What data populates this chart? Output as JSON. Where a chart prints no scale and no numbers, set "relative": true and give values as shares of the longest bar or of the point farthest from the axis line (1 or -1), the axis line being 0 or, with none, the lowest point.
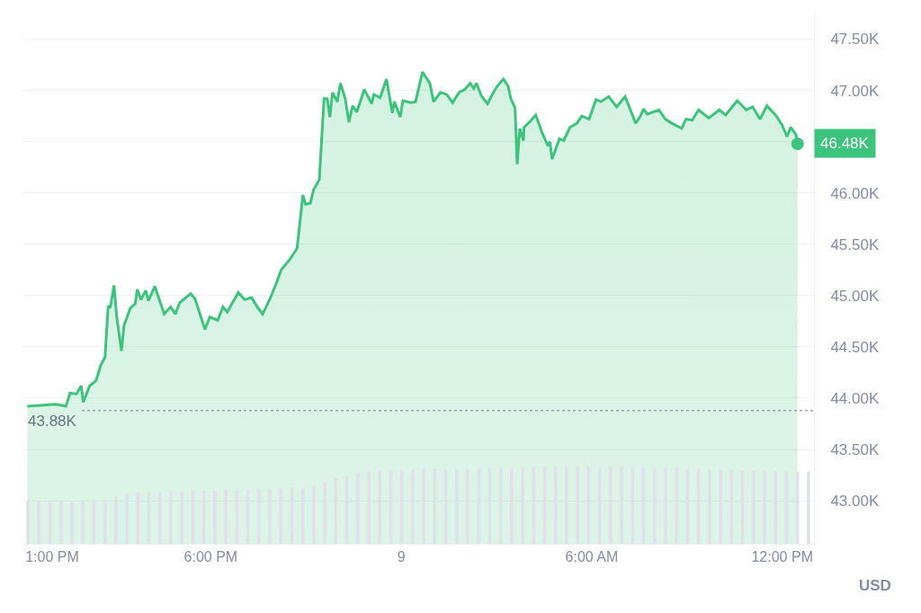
{
  "chart_data": [
    {
      "type": "area",
      "ylabel": "USD",
      "x": [
        "--02-08T12:13",
        "--02-08T13:07",
        "--02-08T13:26",
        "--02-08T13:34",
        "--02-08T13:46",
        "--02-08T13:55",
        "--02-08T13:59",
        "--02-08T14:11",
        "--02-08T14:23",
        "--02-08T14:32",
        "--02-08T14:40",
        "--02-08T14:46",
        "--02-08T14:50",
        "--02-08T14:57",
        "--02-08T15:02",
        "--02-08T15:11",
        "--02-08T15:16",
        "--02-08T15:28",
        "--02-08T15:37",
        "--02-08T15:41",
        "--02-08T15:48",
        "--02-08T15:57",
        "--02-08T16:02",
        "--02-08T16:14",
        "--02-08T16:22",
        "--02-08T16:32",
        "--02-08T16:44",
        "--02-08T16:53",
        "--02-08T17:01",
        "--02-08T17:22",
        "--02-08T17:30",
        "--02-08T17:49",
        "--02-08T17:58",
        "--02-08T18:13",
        "--02-08T18:23",
        "--02-08T18:31",
        "--02-08T18:52",
        "--02-08T19:04",
        "--02-08T19:17",
        "--02-08T19:29",
        "--02-08T19:38",
        "--02-08T19:52",
        "--02-08T20:03",
        "--02-08T20:13",
        "--02-08T20:29",
        "--02-08T20:43",
        "--02-08T20:54",
        "--02-08T20:59",
        "--02-08T21:08",
        "--02-08T21:14",
        "--02-08T21:25",
        "--02-08T21:34",
        "--02-08T21:40",
        "--02-08T21:45",
        "--02-08T21:50",
        "--02-08T21:59",
        "--02-08T22:05",
        "--02-08T22:14",
        "--02-08T22:21",
        "--02-08T22:28",
        "--02-08T22:36",
        "--02-08T22:50",
        "--02-08T23:04",
        "--02-08T23:08",
        "--02-08T23:20",
        "--02-08T23:32",
        "--02-08T23:43",
        "--02-08T23:47",
        "--02-08T23:58",
        "--02-09T00:03",
        "--02-09T00:18",
        "--02-09T00:27",
        "--02-09T00:40",
        "--02-09T00:54",
        "--02-09T01:01",
        "--02-09T01:14",
        "--02-09T01:26",
        "--02-09T01:37",
        "--02-09T01:49",
        "--02-09T02:00",
        "--02-09T02:10",
        "--02-09T02:17",
        "--02-09T02:22",
        "--02-09T02:31",
        "--02-09T02:43",
        "--02-09T02:51",
        "--02-09T03:01",
        "--02-09T03:13",
        "--02-09T03:22",
        "--02-09T03:27",
        "--02-09T03:35",
        "--02-09T03:39",
        "--02-09T03:44",
        "--02-09T03:51",
        "--02-09T03:52",
        "--02-09T04:04",
        "--02-09T04:14",
        "--02-09T04:26",
        "--02-09T04:37",
        "--02-09T04:41",
        "--02-09T04:45",
        "--02-09T04:59",
        "--02-09T05:07",
        "--02-09T05:19",
        "--02-09T05:32",
        "--02-09T05:41",
        "--02-09T05:55",
        "--02-09T06:08",
        "--02-09T06:17",
        "--02-09T06:32",
        "--02-09T06:47",
        "--02-09T07:03",
        "--02-09T07:23",
        "--02-09T07:32",
        "--02-09T07:38",
        "--02-09T07:45",
        "--02-09T08:07",
        "--02-09T08:19",
        "--02-09T08:31",
        "--02-09T08:50",
        "--02-09T08:58",
        "--02-09T09:10",
        "--02-09T09:22",
        "--02-09T09:41",
        "--02-09T10:01",
        "--02-09T10:13",
        "--02-09T10:35",
        "--02-09T10:52",
        "--02-09T11:04",
        "--02-09T11:18",
        "--02-09T11:31",
        "--02-09T11:49",
        "--02-09T12:00",
        "--02-09T12:09",
        "--02-09T12:16",
        "--02-09T12:26",
        "--02-09T12:29"
      ],
      "series": [
        {
          "color": "#3cc47c",
          "values": [
            43920,
            43940,
            43920,
            44050,
            44040,
            44120,
            43960,
            44120,
            44170,
            44320,
            44400,
            44900,
            44880,
            45100,
            44800,
            44460,
            44710,
            44880,
            44920,
            45060,
            44960,
            45050,
            44950,
            45090,
            44970,
            44820,
            44890,
            44820,
            44930,
            45020,
            44970,
            44670,
            44790,
            44760,
            44890,
            44840,
            45030,
            44960,
            44980,
            44880,
            44820,
            44970,
            45110,
            45250,
            45350,
            45460,
            45980,
            45890,
            45900,
            46030,
            46130,
            46920,
            46920,
            46740,
            46980,
            46890,
            47070,
            46920,
            46690,
            46850,
            46790,
            47010,
            46870,
            46960,
            46930,
            47110,
            46780,
            46890,
            46740,
            46900,
            46880,
            46890,
            47180,
            47070,
            46890,
            46980,
            46960,
            46880,
            46980,
            47010,
            47070,
            47020,
            47070,
            46950,
            46870,
            46950,
            47040,
            47110,
            47040,
            46920,
            46830,
            46280,
            46630,
            46510,
            46640,
            46700,
            46760,
            46590,
            46460,
            46500,
            46330,
            46530,
            46510,
            46640,
            46680,
            46750,
            46720,
            46910,
            46890,
            46940,
            46840,
            46940,
            46680,
            46750,
            46820,
            46770,
            46810,
            46720,
            46680,
            46630,
            46720,
            46710,
            46810,
            46730,
            46810,
            46760,
            46900,
            46810,
            46840,
            46720,
            46850,
            46750,
            46660,
            46550,
            46640,
            46570,
            46480
          ]
        }
      ],
      "xlim": [
        "--02-08T12:04",
        "--02-09T13:00"
      ],
      "xticks": [
        {
          "value": "--02-08T13:00",
          "label": "1:00 PM"
        },
        {
          "value": "--02-08T18:00",
          "label": "6:00 PM"
        },
        {
          "value": "--02-09T00:00",
          "label": "9"
        },
        {
          "value": "--02-09T06:00",
          "label": "6:00 AM"
        },
        {
          "value": "--02-09T12:00",
          "label": "12:00 PM"
        }
      ],
      "ylim": [
        42580,
        47750
      ],
      "yticks": [
        {
          "value": 43000,
          "label": "43.00K"
        },
        {
          "value": 43500,
          "label": "43.50K"
        },
        {
          "value": 44000,
          "label": "44.00K"
        },
        {
          "value": 44500,
          "label": "44.50K"
        },
        {
          "value": 45000,
          "label": "45.00K"
        },
        {
          "value": 45500,
          "label": "45.50K"
        },
        {
          "value": 46000,
          "label": "46.00K"
        },
        {
          "value": 46500,
          "label": null
        },
        {
          "value": 47000,
          "label": "47.00K"
        },
        {
          "value": 47500,
          "label": "47.50K"
        }
      ],
      "ref_lines": [
        {
          "axis": "y",
          "value": 43880,
          "label": "43.88K",
          "color": "#9ca3af",
          "line_style": "dotted"
        }
      ],
      "annotations": [
        {
          "text": "46.48K",
          "x": "--02-09T12:29",
          "y": 46480
        }
      ],
      "grid": "y"
    },
    {
      "type": "bar",
      "relative": true,
      "color": "#dfe2e8",
      "categories": [
        null,
        null,
        null,
        null,
        null,
        null,
        null,
        null,
        null,
        null,
        null,
        null,
        null,
        null,
        null,
        null,
        null,
        null,
        null,
        null,
        null,
        null,
        null,
        null,
        null,
        null,
        null,
        null,
        null,
        null,
        null,
        null,
        null,
        null,
        null,
        null,
        null,
        null,
        null,
        null,
        null,
        null,
        null,
        null,
        null,
        null,
        null,
        null,
        null,
        null,
        null,
        null,
        null,
        null,
        null,
        null,
        null,
        null,
        null,
        null,
        null,
        null,
        null,
        null,
        null,
        null,
        null,
        null,
        null,
        null,
        null,
        null
      ],
      "values": [
        0.55,
        0.55,
        0.55,
        0.55,
        0.56,
        0.56,
        0.57,
        0.58,
        0.62,
        0.65,
        0.67,
        0.67,
        0.68,
        0.68,
        0.68,
        0.69,
        0.69,
        0.69,
        0.7,
        0.7,
        0.7,
        0.71,
        0.71,
        0.71,
        0.72,
        0.72,
        0.76,
        0.8,
        0.85,
        0.88,
        0.91,
        0.93,
        0.95,
        0.96,
        0.96,
        0.97,
        0.98,
        0.98,
        0.98,
        0.98,
        0.98,
        0.98,
        0.99,
        0.99,
        1,
        1,
        1,
        1,
        1,
        1,
        1,
        1,
        1,
        1,
        1,
        1,
        0.99,
        0.99,
        0.99,
        0.99,
        0.98,
        0.98,
        0.97,
        0.96,
        0.96,
        0.95,
        0.95,
        0.95,
        0.94,
        0.94,
        0.94,
        0.94
      ]
    }
  ]
}
